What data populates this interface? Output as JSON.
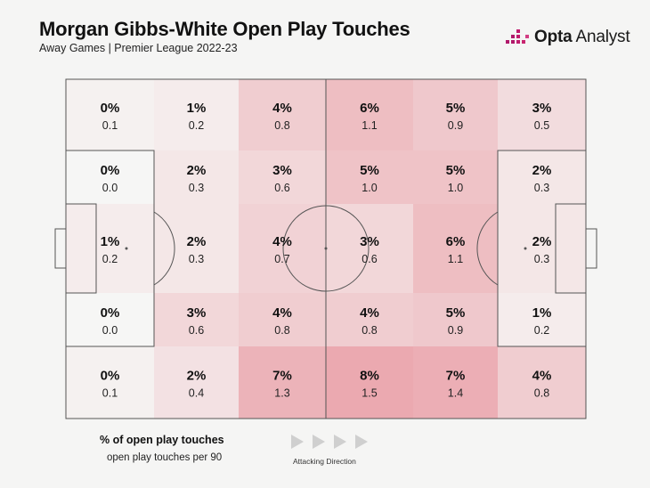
{
  "title": "Morgan Gibbs-White Open Play Touches",
  "subtitle": "Away Games | Premier League 2022-23",
  "brand": {
    "bold": "Opta",
    "rest": " Analyst",
    "logo_icon": "opta-bars-icon"
  },
  "legend": {
    "pct_label": "% of open play touches",
    "per90_label": "open play touches per 90",
    "direction_label": "Attacking Direction"
  },
  "colors": {
    "background": "#f5f5f4",
    "pitch_lines": "#555555",
    "heat_low": "#f6f6f5",
    "heat_high": "#eba9b0"
  },
  "chart_data": {
    "type": "heatmap",
    "title": "Morgan Gibbs-White Open Play Touches",
    "subtitle": "Away Games | Premier League 2022-23",
    "grid": {
      "rows": 5,
      "cols": 6
    },
    "direction": "left-to-right",
    "cells": [
      [
        {
          "pct": "0%",
          "per90": "0.1"
        },
        {
          "pct": "1%",
          "per90": "0.2"
        },
        {
          "pct": "4%",
          "per90": "0.8"
        },
        {
          "pct": "6%",
          "per90": "1.1"
        },
        {
          "pct": "5%",
          "per90": "0.9"
        },
        {
          "pct": "3%",
          "per90": "0.5"
        }
      ],
      [
        {
          "pct": "0%",
          "per90": "0.0"
        },
        {
          "pct": "2%",
          "per90": "0.3"
        },
        {
          "pct": "3%",
          "per90": "0.6"
        },
        {
          "pct": "5%",
          "per90": "1.0"
        },
        {
          "pct": "5%",
          "per90": "1.0"
        },
        {
          "pct": "2%",
          "per90": "0.3"
        }
      ],
      [
        {
          "pct": "1%",
          "per90": "0.2"
        },
        {
          "pct": "2%",
          "per90": "0.3"
        },
        {
          "pct": "4%",
          "per90": "0.7"
        },
        {
          "pct": "3%",
          "per90": "0.6"
        },
        {
          "pct": "6%",
          "per90": "1.1"
        },
        {
          "pct": "2%",
          "per90": "0.3"
        }
      ],
      [
        {
          "pct": "0%",
          "per90": "0.0"
        },
        {
          "pct": "3%",
          "per90": "0.6"
        },
        {
          "pct": "4%",
          "per90": "0.8"
        },
        {
          "pct": "4%",
          "per90": "0.8"
        },
        {
          "pct": "5%",
          "per90": "0.9"
        },
        {
          "pct": "1%",
          "per90": "0.2"
        }
      ],
      [
        {
          "pct": "0%",
          "per90": "0.1"
        },
        {
          "pct": "2%",
          "per90": "0.4"
        },
        {
          "pct": "7%",
          "per90": "1.3"
        },
        {
          "pct": "8%",
          "per90": "1.5"
        },
        {
          "pct": "7%",
          "per90": "1.4"
        },
        {
          "pct": "4%",
          "per90": "0.8"
        }
      ]
    ]
  }
}
